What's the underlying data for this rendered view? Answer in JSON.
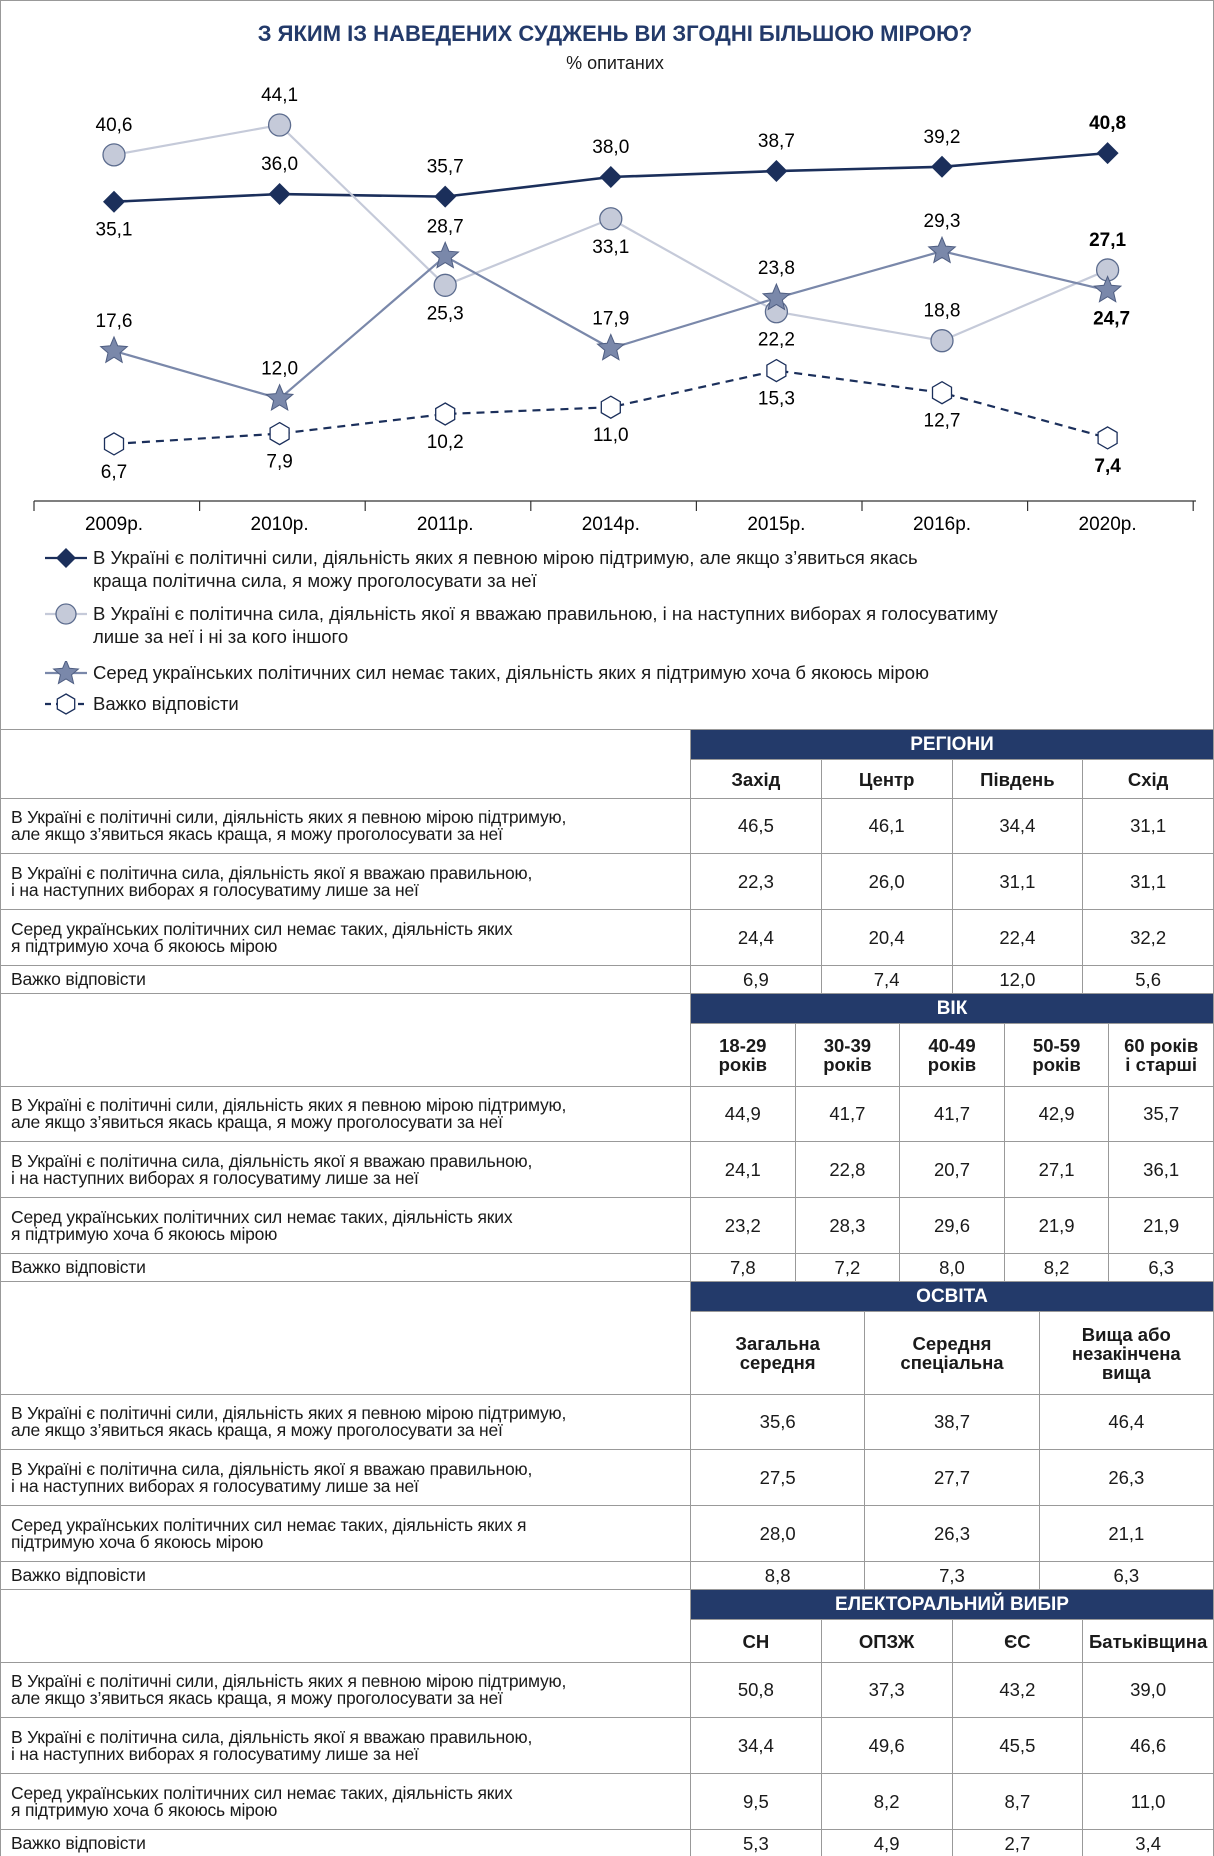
{
  "chart_data": {
    "type": "line",
    "title": "З ЯКИМ ІЗ НАВЕДЕНИХ СУДЖЕНЬ ВИ ЗГОДНІ БІЛЬШОЮ МІРОЮ?",
    "subtitle": "% опитаних",
    "categories": [
      "2009р.",
      "2010р.",
      "2011р.",
      "2014р.",
      "2015р.",
      "2016р.",
      "2020р."
    ],
    "series": [
      {
        "name": "В Україні є політичні сили, діяльність яких я певною мірою підтримую, але якщо з’явиться якась\nкраща політична сила, я можу проголосувати за неї",
        "color": "#1b2f5b",
        "marker": "diamond",
        "dash": false,
        "values": [
          35.1,
          36.0,
          35.7,
          38.0,
          38.7,
          39.2,
          40.8
        ],
        "value_labels": [
          "35,1",
          "36,0",
          "35,7",
          "38,0",
          "38,7",
          "39,2",
          "40,8"
        ]
      },
      {
        "name": "В Україні є політична сила, діяльність якої я вважаю правильною, і на наступних виборах я голосуватиму\nлише за неї і ні за кого іншого",
        "color": "#c5cad9",
        "marker": "circle",
        "dash": false,
        "values": [
          40.6,
          44.1,
          25.3,
          33.1,
          22.2,
          18.8,
          27.1
        ],
        "value_labels": [
          "40,6",
          "44,1",
          "25,3",
          "33,1",
          "22,2",
          "18,8",
          "27,1"
        ]
      },
      {
        "name": "Серед українських політичних сил немає таких, діяльність яких я підтримую хоча б якоюсь мірою",
        "color": "#7a88aa",
        "marker": "star",
        "dash": false,
        "values": [
          17.6,
          12.0,
          28.7,
          17.9,
          23.8,
          29.3,
          24.7
        ],
        "value_labels": [
          "17,6",
          "12,0",
          "28,7",
          "17,9",
          "23,8",
          "29,3",
          "24,7"
        ]
      },
      {
        "name": "Важко відповісти",
        "color": "#1b2f5b",
        "marker": "hexagon",
        "dash": true,
        "values": [
          6.7,
          7.9,
          10.2,
          11.0,
          15.3,
          12.7,
          7.4
        ],
        "value_labels": [
          "6,7",
          "7,9",
          "10,2",
          "11,0",
          "15,3",
          "12,7",
          "7,4"
        ]
      }
    ]
  },
  "tables": [
    {
      "title": "РЕГІОНИ",
      "columns": [
        "Захід",
        "Центр",
        "Південь",
        "Схід"
      ],
      "rows": [
        {
          "label": "В Україні є політичні сили, діяльність яких я певною мірою підтримую,\nале якщо з’явиться якась краща, я можу проголосувати за неї",
          "values": [
            "46,5",
            "46,1",
            "34,4",
            "31,1"
          ]
        },
        {
          "label": "В Україні є політична сила, діяльність якої я вважаю правильною,\nі на наступних виборах я голосуватиму лише за неї",
          "values": [
            "22,3",
            "26,0",
            "31,1",
            "31,1"
          ]
        },
        {
          "label": "Серед українських політичних сил немає таких, діяльність яких\nя підтримую хоча б якоюсь мірою",
          "values": [
            "24,4",
            "20,4",
            "22,4",
            "32,2"
          ]
        },
        {
          "label": "Важко відповісти",
          "values": [
            "6,9",
            "7,4",
            "12,0",
            "5,6"
          ]
        }
      ]
    },
    {
      "title": "ВІК",
      "columns": [
        "18-29\nроків",
        "30-39\nроків",
        "40-49\nроків",
        "50-59\nроків",
        "60 років\nі старші"
      ],
      "rows": [
        {
          "label": "В Україні є політичні сили, діяльність яких я певною мірою підтримую,\nале якщо з’явиться якась краща, я можу проголосувати за неї",
          "values": [
            "44,9",
            "41,7",
            "41,7",
            "42,9",
            "35,7"
          ]
        },
        {
          "label": "В Україні є політична сила, діяльність якої я вважаю правильною,\nі на наступних виборах я голосуватиму лише за неї",
          "values": [
            "24,1",
            "22,8",
            "20,7",
            "27,1",
            "36,1"
          ]
        },
        {
          "label": "Серед українських політичних сил немає таких, діяльність яких\nя підтримую хоча б якоюсь мірою",
          "values": [
            "23,2",
            "28,3",
            "29,6",
            "21,9",
            "21,9"
          ]
        },
        {
          "label": "Важко відповісти",
          "values": [
            "7,8",
            "7,2",
            "8,0",
            "8,2",
            "6,3"
          ]
        }
      ]
    },
    {
      "title": "ОСВІТА",
      "columns": [
        "Загальна\nсередня",
        "Середня\nспеціальна",
        "Вища або\nнезакінчена\nвища"
      ],
      "rows": [
        {
          "label": "В Україні є політичні сили, діяльність яких я певною мірою підтримую,\nале якщо з’явиться якась краща, я можу проголосувати за неї",
          "values": [
            "35,6",
            "38,7",
            "46,4"
          ]
        },
        {
          "label": "В Україні є політична сила, діяльність якої я вважаю правильною,\nі на наступних виборах я голосуватиму лише за неї",
          "values": [
            "27,5",
            "27,7",
            "26,3"
          ]
        },
        {
          "label": "Серед українських політичних сил немає таких, діяльність яких я\nпідтримую хоча б якоюсь мірою",
          "values": [
            "28,0",
            "26,3",
            "21,1"
          ]
        },
        {
          "label": "Важко відповісти",
          "values": [
            "8,8",
            "7,3",
            "6,3"
          ]
        }
      ]
    },
    {
      "title": "ЕЛЕКТОРАЛЬНИЙ ВИБІР",
      "columns": [
        "СН",
        "ОПЗЖ",
        "ЄС",
        "Батьківщина"
      ],
      "rows": [
        {
          "label": "В Україні є політичні сили, діяльність яких я певною мірою підтримую,\nале якщо з’явиться якась краща, я можу проголосувати за неї",
          "values": [
            "50,8",
            "37,3",
            "43,2",
            "39,0"
          ]
        },
        {
          "label": "В Україні є політична сила, діяльність якої я вважаю правильною,\nі на наступних виборах я голосуватиму лише за неї",
          "values": [
            "34,4",
            "49,6",
            "45,5",
            "46,6"
          ]
        },
        {
          "label": "Серед українських політичних сил немає таких, діяльність яких\nя підтримую хоча б якоюсь мірою",
          "values": [
            "9,5",
            "8,2",
            "8,7",
            "11,0"
          ]
        },
        {
          "label": "Важко відповісти",
          "values": [
            "5,3",
            "4,9",
            "2,7",
            "3,4"
          ]
        }
      ]
    }
  ]
}
